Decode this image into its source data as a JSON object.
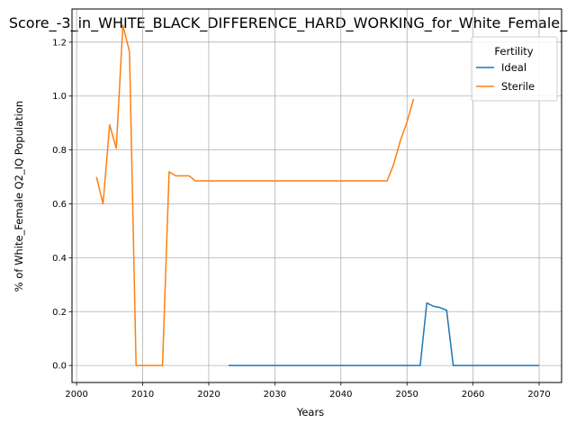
{
  "chart_data": {
    "type": "line",
    "title": "Score_-3_in_WHITE_BLACK_DIFFERENCE_HARD_WORKING_for_White_Female_",
    "xlabel": "Years",
    "ylabel": "% of White_Female Q2_IQ Population",
    "xlim": [
      1999.3,
      2073.4
    ],
    "ylim": [
      -0.063,
      1.323
    ],
    "xticks": [
      2000,
      2010,
      2020,
      2030,
      2040,
      2050,
      2060,
      2070
    ],
    "yticks": [
      0.0,
      0.2,
      0.4,
      0.6,
      0.8,
      1.0,
      1.2
    ],
    "ytick_labels": [
      "0.0",
      "0.2",
      "0.4",
      "0.6",
      "0.8",
      "1.0",
      "1.2"
    ],
    "grid": true,
    "legend": {
      "title": "Fertility",
      "placement": "top-right"
    },
    "series": [
      {
        "name": "Ideal",
        "color": "#1f77b4",
        "points": [
          [
            2023,
            0
          ],
          [
            2052,
            0
          ],
          [
            2053,
            0.232
          ],
          [
            2054,
            0.22
          ],
          [
            2055,
            0.215
          ],
          [
            2056,
            0.205
          ],
          [
            2057,
            0
          ],
          [
            2070,
            0
          ]
        ]
      },
      {
        "name": "Sterile",
        "color": "#ff7f0e",
        "points": [
          [
            2003,
            0.7
          ],
          [
            2004,
            0.6
          ],
          [
            2005,
            0.893
          ],
          [
            2006,
            0.806
          ],
          [
            2007,
            1.262
          ],
          [
            2008,
            1.165
          ],
          [
            2009,
            0
          ],
          [
            2013,
            0
          ],
          [
            2014,
            0.719
          ],
          [
            2015,
            0.704
          ],
          [
            2016,
            0.704
          ],
          [
            2017,
            0.704
          ],
          [
            2018,
            0.685
          ],
          [
            2047,
            0.685
          ],
          [
            2048,
            0.748
          ],
          [
            2049,
            0.835
          ],
          [
            2050,
            0.903
          ],
          [
            2051,
            0.99
          ]
        ]
      }
    ]
  }
}
